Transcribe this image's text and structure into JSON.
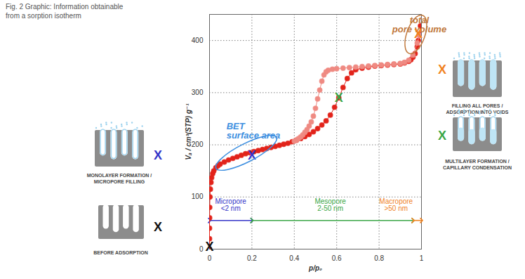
{
  "caption": [
    "Fig. 2 Graphic: Information obtainable",
    "from a sorption isotherm"
  ],
  "chart_data": {
    "type": "scatter",
    "x_label": "p/p₀",
    "y_label": "Vₐ / cm³(STP) g⁻¹",
    "xlim": [
      0,
      1
    ],
    "ylim": [
      0,
      450
    ],
    "xticks": [
      0,
      0.2,
      0.4,
      0.6,
      0.8,
      1
    ],
    "yticks": [
      0,
      100,
      200,
      300,
      400
    ],
    "grid": true,
    "series": [
      {
        "color": "#e2231a",
        "marker": "circle",
        "line_style": "solid",
        "x": [
          0,
          0,
          0,
          0.0005,
          0.001,
          0.002,
          0.004,
          0.007,
          0.01,
          0.015,
          0.02,
          0.03,
          0.04,
          0.05,
          0.07,
          0.09,
          0.11,
          0.13,
          0.15,
          0.17,
          0.19,
          0.21,
          0.23,
          0.25,
          0.27,
          0.29,
          0.31,
          0.33,
          0.35,
          0.37,
          0.39,
          0.41,
          0.43,
          0.45,
          0.47,
          0.49,
          0.51,
          0.53,
          0.55,
          0.57,
          0.59,
          0.61,
          0.63,
          0.65,
          0.67,
          0.69,
          0.72,
          0.75,
          0.78,
          0.81,
          0.84,
          0.87,
          0.9,
          0.92,
          0.94,
          0.95,
          0.96,
          0.97,
          0.98,
          0.985,
          0.99,
          0.995
        ],
        "values": [
          0,
          20,
          40,
          60,
          80,
          100,
          115,
          128,
          137,
          145,
          150,
          156,
          160,
          163,
          167,
          171,
          174,
          177,
          180,
          183,
          185,
          187,
          189,
          191,
          193,
          195,
          197,
          199,
          201,
          203,
          206,
          209,
          212,
          216,
          220,
          225,
          231,
          238,
          246,
          257,
          272,
          290,
          310,
          327,
          338,
          344,
          347,
          349,
          351,
          352,
          353,
          354,
          355,
          357,
          360,
          363,
          368,
          375,
          388,
          400,
          412,
          428
        ]
      },
      {
        "color": "#ef8a82",
        "marker": "circle",
        "line_style": "solid",
        "x": [
          0.99,
          0.98,
          0.96,
          0.94,
          0.92,
          0.9,
          0.87,
          0.84,
          0.81,
          0.78,
          0.75,
          0.72,
          0.69,
          0.66,
          0.63,
          0.6,
          0.58,
          0.56,
          0.55,
          0.54,
          0.53,
          0.52,
          0.51,
          0.5,
          0.49,
          0.48,
          0.47,
          0.46,
          0.45,
          0.44,
          0.43,
          0.42,
          0.41,
          0.4
        ],
        "values": [
          410,
          395,
          372,
          362,
          358,
          356,
          355,
          354,
          353,
          352,
          351,
          350,
          349,
          348,
          347,
          346,
          345,
          343,
          340,
          334,
          322,
          305,
          288,
          270,
          255,
          244,
          236,
          229,
          224,
          219,
          215,
          212,
          209,
          207
        ]
      }
    ],
    "highlights": [
      {
        "lines": [
          "BET",
          "surface area"
        ],
        "x": 0.08,
        "y": 226,
        "color": "#3d8fe0",
        "xrange": [
          0.05,
          0.3
        ],
        "yrange": [
          158,
          210
        ]
      },
      {
        "lines": [
          "total",
          "pore volume"
        ],
        "x": 0.99,
        "y": 430,
        "color": "#c0783c",
        "xrange": [
          0.95,
          1
        ],
        "yrange": [
          382,
          440
        ]
      }
    ],
    "markers": [
      {
        "text": "X",
        "x": 0,
        "y": 5,
        "color": "#111111"
      },
      {
        "text": "X",
        "x": 0.2,
        "y": 180,
        "color": "#3434c8"
      },
      {
        "text": "X",
        "x": 0.61,
        "y": 290,
        "color": "#3aa646"
      },
      {
        "text": "X",
        "x": 0.985,
        "y": 412,
        "color": "#f0821e"
      }
    ],
    "regions": [
      {
        "label": "Micropore",
        "sublabel": "<2 nm",
        "from": 0,
        "to": 0.2,
        "y": 55,
        "label_x": 0.1,
        "label_y": 85,
        "color": "#3434c8"
      },
      {
        "label": "Mesopore",
        "sublabel": "2-50 nm",
        "from": 0.2,
        "to": 0.96,
        "y": 55,
        "label_x": 0.57,
        "label_y": 85,
        "color": "#3aa646"
      },
      {
        "label": "Macropore",
        "sublabel": ">50 nm",
        "from": 0.96,
        "to": 1,
        "y": 55,
        "label_x": 0.88,
        "label_y": 85,
        "color": "#f0821e"
      }
    ],
    "panels": [
      {
        "lines": [
          "MONOLAYER FORMATION /",
          "MICROPORE FILLING"
        ],
        "marker": "X",
        "color": "#3434c8"
      },
      {
        "lines": [
          "BEFORE ADSORPTION"
        ],
        "marker": "X",
        "color": "#111111"
      },
      {
        "lines": [
          "FILLING ALL PORES /",
          "ADSORPTION INTO VOIDS"
        ],
        "marker": "X",
        "color": "#f0821e"
      },
      {
        "lines": [
          "MULTILAYER FORMATION /",
          "CAPILLARY CONDENSATION"
        ],
        "marker": "X",
        "color": "#3aa646"
      }
    ]
  }
}
